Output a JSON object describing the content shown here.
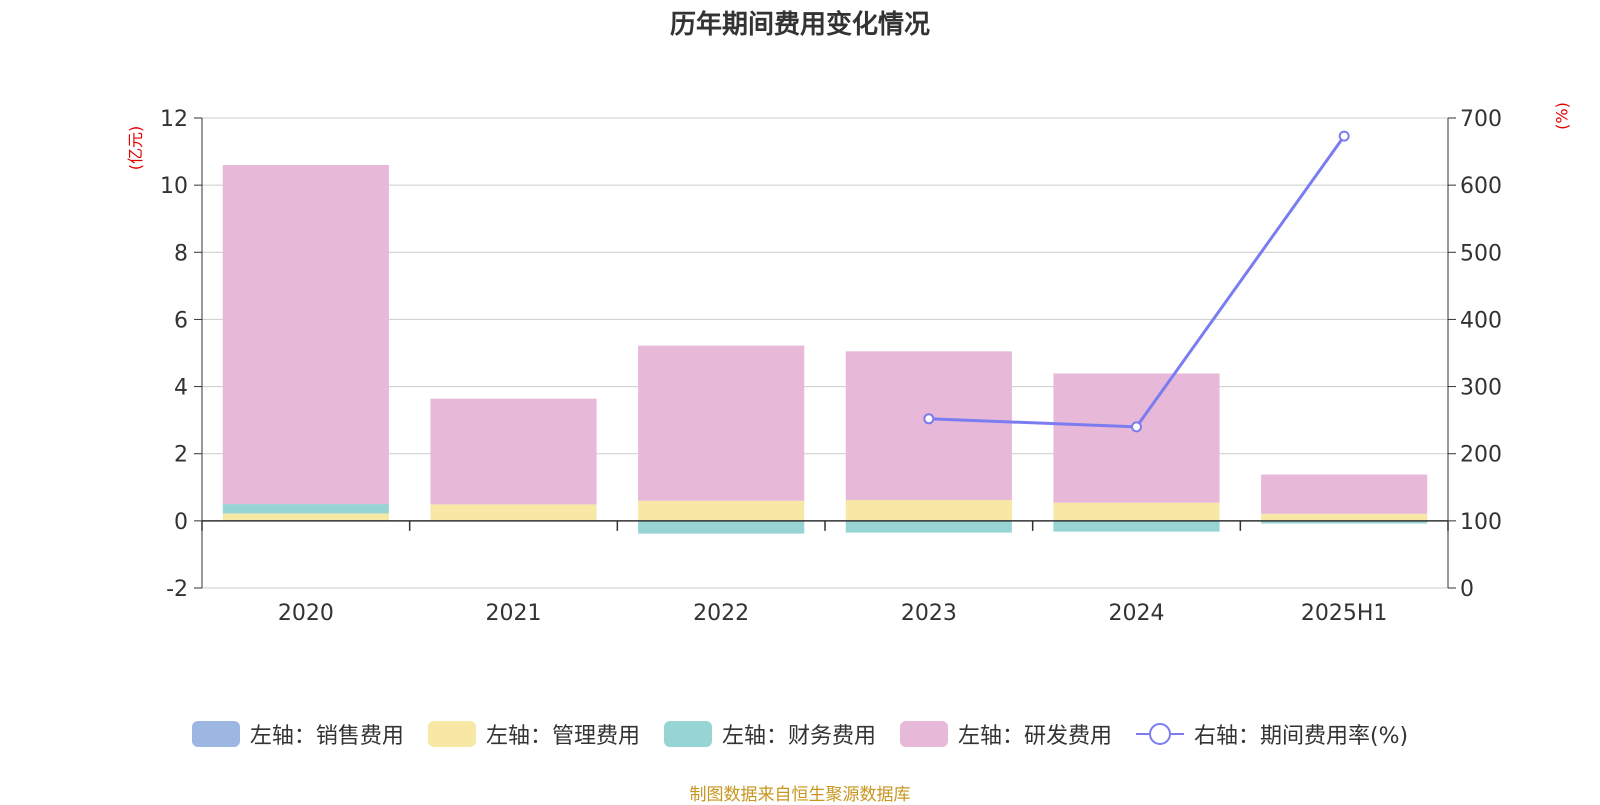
{
  "chart_data": {
    "type": "bar",
    "stacked": true,
    "title": "历年期间费用变化情况",
    "categories": [
      "2020",
      "2021",
      "2022",
      "2023",
      "2024",
      "2025H1"
    ],
    "y_left_unit": "(亿元)",
    "y_right_unit": "(%)",
    "y_left_lim": [
      -2,
      12
    ],
    "y_left_ticks": [
      -2,
      0,
      2,
      4,
      6,
      8,
      10,
      12
    ],
    "y_right_lim": [
      0,
      700
    ],
    "y_right_ticks": [
      0,
      100,
      200,
      300,
      400,
      500,
      600,
      700
    ],
    "grid": true,
    "legend_position": "bottom",
    "series": [
      {
        "name": "左轴：销售费用",
        "axis": "left",
        "color": "#9db7e3",
        "values": [
          0.02,
          0.01,
          0.02,
          0.02,
          0.02,
          0.01
        ]
      },
      {
        "name": "左轴：管理费用",
        "axis": "left",
        "color": "#f7e8a6",
        "values": [
          0.2,
          0.48,
          0.58,
          0.6,
          0.52,
          0.2
        ]
      },
      {
        "name": "左轴：财务费用",
        "axis": "left",
        "color": "#97d4d4",
        "values": [
          0.28,
          -0.02,
          -0.38,
          -0.35,
          -0.32,
          -0.08
        ]
      },
      {
        "name": "左轴：研发费用",
        "axis": "left",
        "color": "#e8b8d8",
        "values": [
          10.1,
          3.15,
          4.62,
          4.43,
          3.85,
          1.17
        ]
      },
      {
        "name": "右轴：期间费用率(%)",
        "axis": "right",
        "type": "line",
        "color": "#7b7cf0",
        "values": [
          null,
          null,
          null,
          252,
          240,
          673
        ]
      }
    ]
  },
  "source_note": "制图数据来自恒生聚源数据库"
}
